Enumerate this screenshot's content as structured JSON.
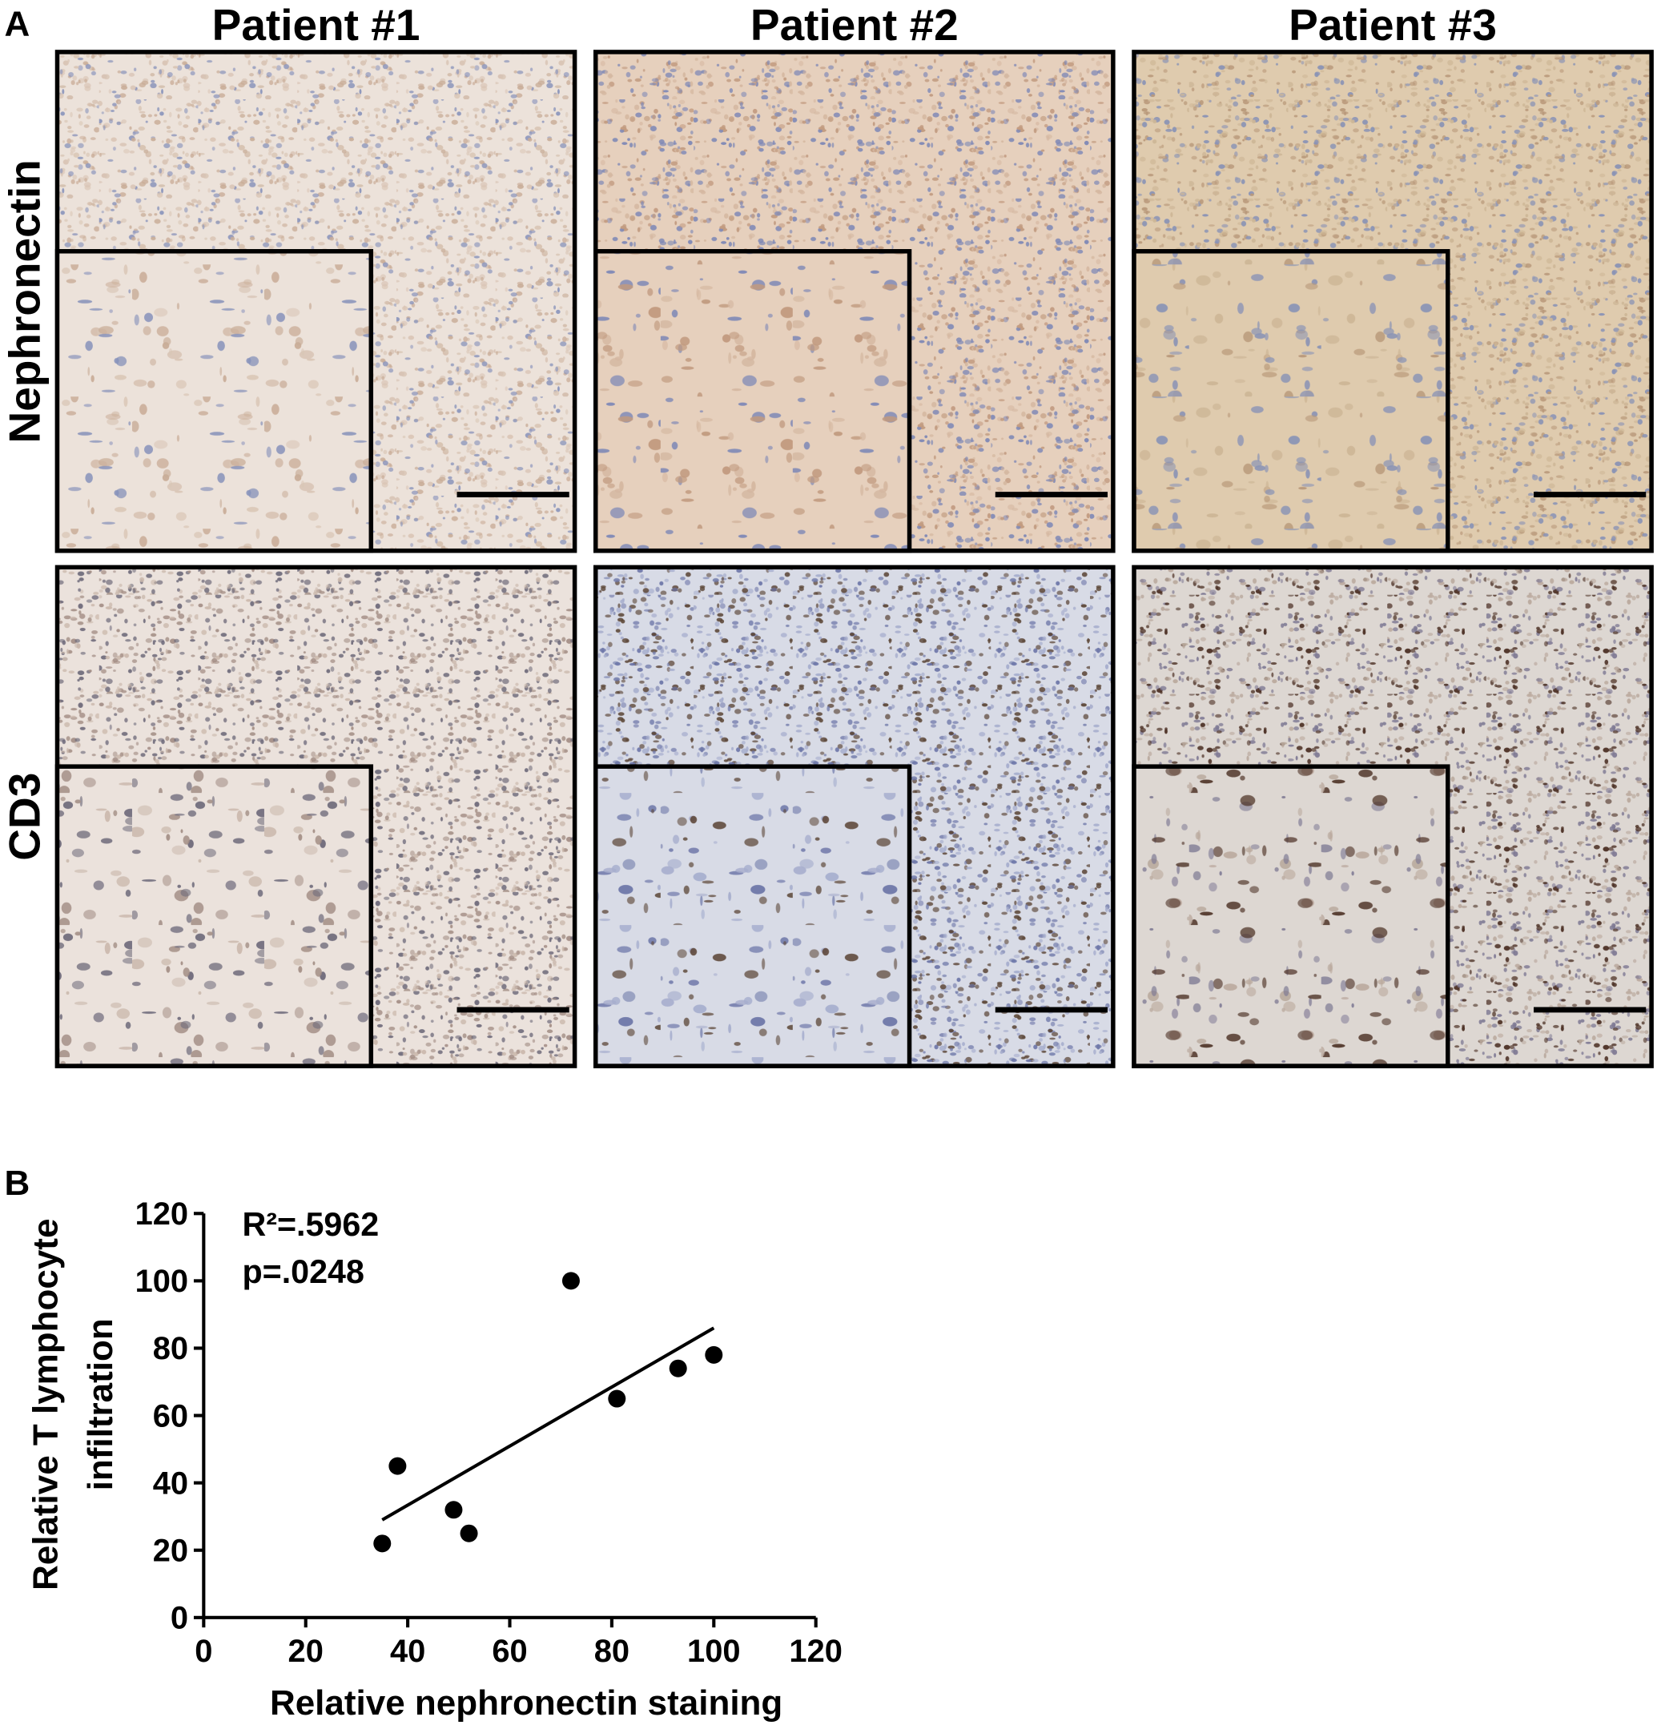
{
  "panel_a": {
    "label": "A",
    "columns": [
      "Patient #1",
      "Patient #2",
      "Patient #3"
    ],
    "rows": [
      "Nephronectin",
      "CD3"
    ]
  },
  "chart_data": {
    "type": "scatter",
    "label": "B",
    "annotations": [
      "R²=.5962",
      "p=.0248"
    ],
    "xlabel": "Relative nephronectin staining",
    "ylabel": [
      "Relative T lymphocyte",
      "infiltration"
    ],
    "x": [
      35,
      38,
      49,
      52,
      72,
      81,
      93,
      100
    ],
    "values": [
      22,
      45,
      32,
      25,
      100,
      65,
      74,
      78
    ],
    "color": "#000000",
    "fit_line": {
      "x": [
        35,
        100
      ],
      "y": [
        29,
        86
      ]
    },
    "xlim": [
      0,
      120
    ],
    "ylim": [
      0,
      120
    ],
    "xticks": [
      0,
      20,
      40,
      60,
      80,
      100,
      120
    ],
    "yticks": [
      0,
      20,
      40,
      60,
      80,
      100,
      120
    ]
  }
}
